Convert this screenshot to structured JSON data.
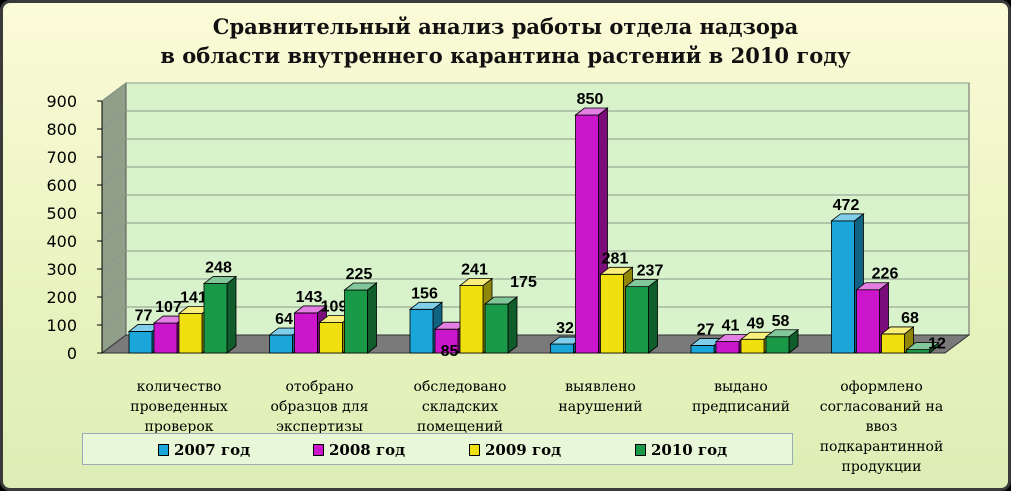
{
  "title_line1": "Сравнительный анализ работы отдела надзора",
  "title_line2": "в области внутреннего карантина растений в 2010 году",
  "chart_data": {
    "type": "bar",
    "title": "Сравнительный анализ работы отдела надзора в области внутреннего карантина растений в 2010 году",
    "ylim": [
      0,
      900
    ],
    "yticks": [
      0,
      100,
      200,
      300,
      400,
      500,
      600,
      700,
      800,
      900
    ],
    "grid": true,
    "legend_position": "bottom",
    "categories": [
      [
        "количество",
        "проведенных",
        "проверок"
      ],
      [
        "отобрано",
        "образцов для",
        "экспертизы"
      ],
      [
        "обследовано",
        "складских",
        "помещений"
      ],
      [
        "выявлено",
        "нарушений"
      ],
      [
        "выдано",
        "предписаний"
      ],
      [
        "оформлено",
        "согласований на",
        "ввоз",
        "подкарантинной",
        "продукции"
      ]
    ],
    "series": [
      {
        "name": "2007 год",
        "color": "#1aa6d8",
        "values": [
          77,
          64,
          156,
          32,
          27,
          472
        ]
      },
      {
        "name": "2008 год",
        "color": "#cc16cc",
        "values": [
          107,
          143,
          85,
          850,
          41,
          226
        ]
      },
      {
        "name": "2009 год",
        "color": "#f0e010",
        "values": [
          141,
          109,
          241,
          281,
          49,
          68
        ]
      },
      {
        "name": "2010 год",
        "color": "#1a9a48",
        "values": [
          248,
          225,
          175,
          237,
          58,
          12
        ]
      }
    ]
  }
}
